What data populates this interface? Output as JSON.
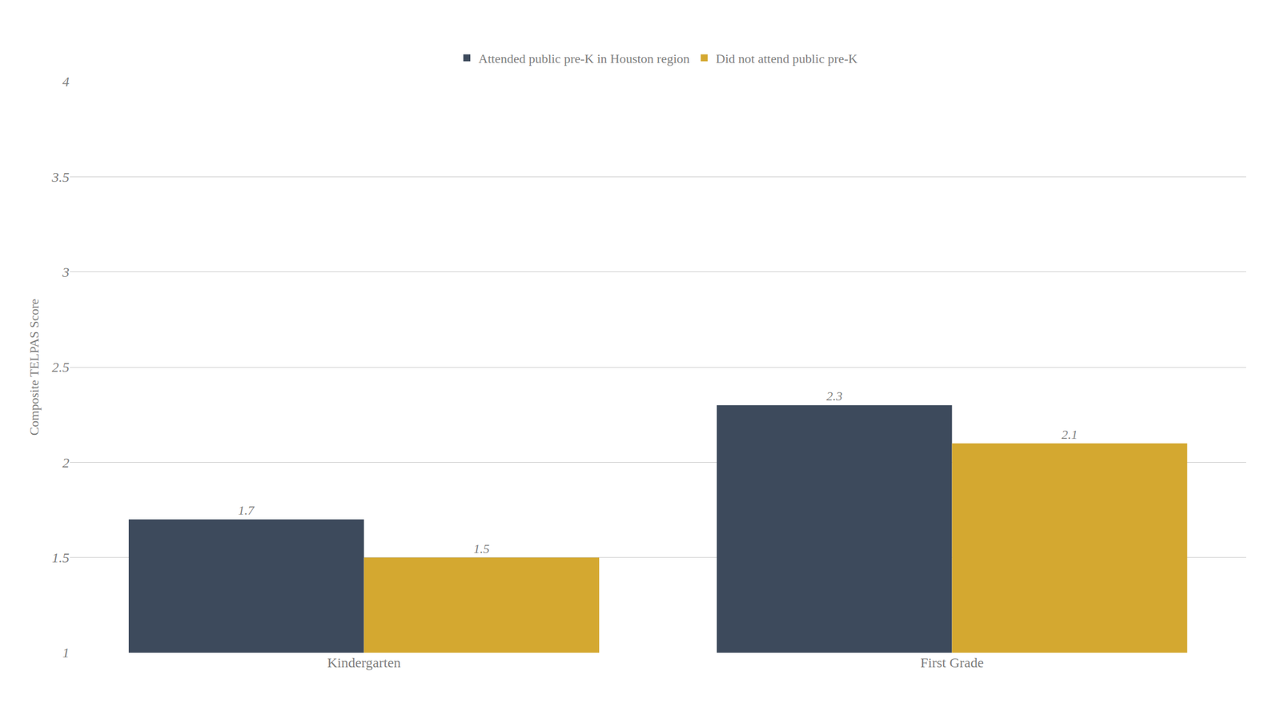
{
  "chart_data": {
    "type": "bar",
    "categories": [
      "Kindergarten",
      "First Grade"
    ],
    "series": [
      {
        "name": "Attended public pre-K in Houston region",
        "color": "#3d4a5c",
        "values": [
          1.7,
          2.3
        ]
      },
      {
        "name": "Did not attend public pre-K",
        "color": "#d4a830",
        "values": [
          1.5,
          2.1
        ]
      }
    ],
    "ylabel": "Composite TELPAS Score",
    "ylim": [
      1.0,
      4.0
    ],
    "yticks": [
      1,
      1.5,
      2,
      2.5,
      3,
      3.5,
      4
    ],
    "grid": true,
    "legend": "top",
    "data_labels": true
  }
}
